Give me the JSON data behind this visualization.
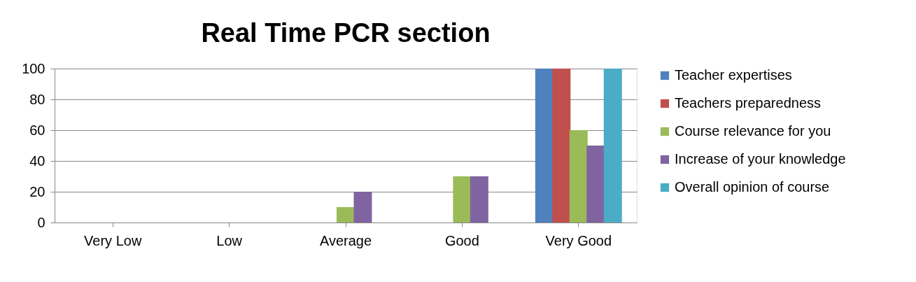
{
  "chart_data": {
    "type": "bar",
    "title": "Real Time PCR section",
    "categories": [
      "Very Low",
      "Low",
      "Average",
      "Good",
      "Very Good"
    ],
    "series": [
      {
        "name": "Teacher expertises",
        "color": "#4f81bd",
        "values": [
          0,
          0,
          0,
          0,
          100
        ]
      },
      {
        "name": "Teachers preparedness",
        "color": "#c0504d",
        "values": [
          0,
          0,
          0,
          0,
          100
        ]
      },
      {
        "name": "Course relevance for you",
        "color": "#9bbb59",
        "values": [
          0,
          0,
          10,
          30,
          60
        ]
      },
      {
        "name": "Increase of your knowledge",
        "color": "#8064a2",
        "values": [
          0,
          0,
          20,
          30,
          50
        ]
      },
      {
        "name": "Overall opinion of course",
        "color": "#4bacc6",
        "values": [
          0,
          0,
          0,
          0,
          100
        ]
      }
    ],
    "ylim": [
      0,
      100
    ],
    "yticks": [
      0,
      20,
      40,
      60,
      80,
      100
    ],
    "grid": "y",
    "legend": "right"
  }
}
